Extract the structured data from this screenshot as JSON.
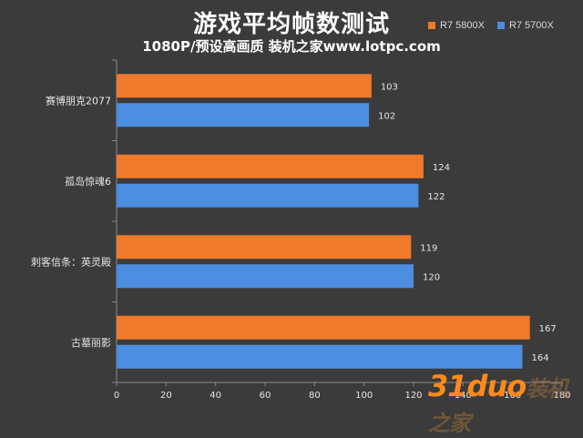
{
  "header": {
    "title": "游戏平均帧数测试",
    "subtitle": "1080P/预设高画质 装机之家www.lotpc.com"
  },
  "watermark": {
    "text": "31duo",
    "tail": "装机之家"
  },
  "colors": {
    "background": "#3b3b3b",
    "series1": "#f07a2b",
    "series2": "#4c8de0",
    "text": "#e6e6e6",
    "grid": "#8a8a8a"
  },
  "chart_data": {
    "type": "bar",
    "orientation": "horizontal",
    "title": "游戏平均帧数测试",
    "subtitle": "1080P/预设高画质 装机之家www.lotpc.com",
    "categories": [
      "赛博朋克2077",
      "孤岛惊魂6",
      "刺客信条：英灵殿",
      "古墓丽影"
    ],
    "series": [
      {
        "name": "R7 5800X",
        "values": [
          103,
          124,
          119,
          167
        ]
      },
      {
        "name": "R7 5700X",
        "values": [
          102,
          122,
          120,
          164
        ]
      }
    ],
    "xlim": [
      0,
      180
    ],
    "xticks": [
      0,
      20,
      40,
      60,
      80,
      100,
      120,
      140,
      160,
      180
    ],
    "legend": "top-right",
    "grid": false
  }
}
